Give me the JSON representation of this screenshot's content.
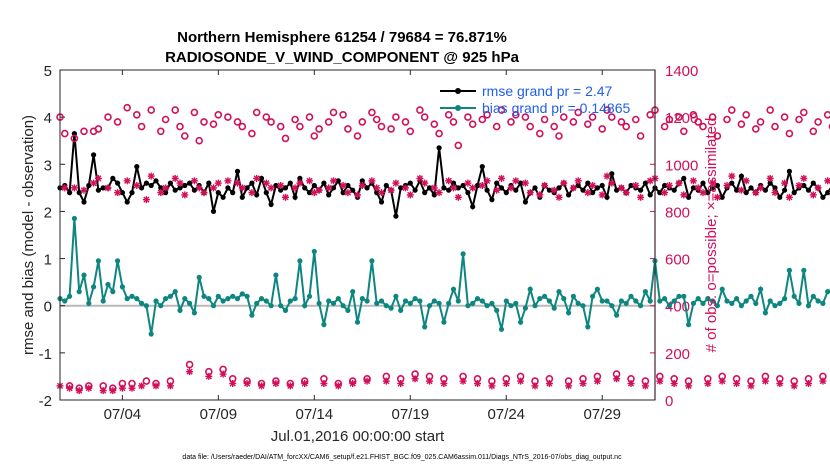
{
  "chart_data": {
    "type": "line",
    "title": [
      "Northern Hemisphere 61254 / 79684 = 76.871%",
      "RADIOSONDE_V_WIND_COMPONENT @ 925 hPa"
    ],
    "xlabel": "Jul.01,2016 00:00:00 start",
    "ylabel_left": "rmse and bias (model - observation)",
    "ylabel_right": "# of obs: o=possible; ×=assimilated",
    "ylim_left": [
      -2,
      5
    ],
    "ylim_right": [
      0,
      1400
    ],
    "xlim": [
      0.75,
      31.75
    ],
    "left_ticks": [
      "-2",
      "-1",
      "0",
      "1",
      "2",
      "3",
      "4",
      "5"
    ],
    "right_ticks": [
      "0",
      "200",
      "400",
      "600",
      "800",
      "1000",
      "1200",
      "1400"
    ],
    "x_ticks": [
      {
        "x": 4,
        "label": "07/04"
      },
      {
        "x": 9,
        "label": "07/09"
      },
      {
        "x": 14,
        "label": "07/14"
      },
      {
        "x": 19,
        "label": "07/19"
      },
      {
        "x": 24,
        "label": "07/24"
      },
      {
        "x": 29,
        "label": "07/29"
      }
    ],
    "x_start": 0.75,
    "x_step": 0.25,
    "series": [
      {
        "name": "rmse grand pr = 2.47",
        "axis": "left",
        "color": "#000000",
        "values": [
          2.5,
          2.55,
          2.4,
          3.65,
          2.4,
          2.2,
          2.55,
          3.2,
          2.45,
          2.5,
          2.5,
          2.7,
          2.6,
          2.4,
          2.2,
          2.4,
          2.95,
          2.5,
          2.6,
          2.55,
          2.65,
          2.5,
          2.4,
          2.6,
          2.45,
          2.5,
          2.55,
          2.6,
          2.45,
          2.55,
          2.4,
          2.6,
          2.0,
          2.4,
          2.3,
          2.5,
          2.4,
          2.85,
          2.3,
          2.5,
          2.6,
          2.35,
          2.7,
          2.4,
          2.15,
          2.55,
          2.45,
          2.5,
          2.6,
          2.3,
          2.7,
          2.5,
          2.4,
          2.55,
          2.45,
          2.6,
          2.35,
          2.5,
          2.65,
          2.4,
          2.55,
          2.45,
          2.3,
          2.65,
          2.5,
          2.6,
          2.4,
          2.2,
          2.55,
          2.45,
          1.9,
          2.5,
          2.55,
          2.6,
          2.45,
          2.65,
          2.4,
          2.5,
          2.35,
          3.35,
          2.5,
          2.45,
          2.6,
          2.5,
          2.55,
          2.4,
          2.1,
          2.55,
          2.95,
          2.45,
          2.25,
          2.6,
          2.5,
          2.4,
          2.55,
          2.45,
          2.6,
          2.2,
          2.4,
          2.5,
          2.3,
          2.55,
          2.45,
          2.4,
          2.5,
          2.6,
          2.35,
          2.5,
          2.55,
          2.45,
          2.6,
          2.4,
          2.5,
          2.55,
          2.3,
          2.8,
          2.45,
          2.5,
          2.4,
          2.55,
          2.5,
          2.45,
          2.6,
          2.35,
          2.5,
          2.4,
          2.55,
          2.5,
          2.45,
          2.6,
          2.7,
          2.3,
          2.5,
          2.45,
          2.6,
          2.4,
          2.5,
          2.55,
          2.3,
          2.5,
          2.6,
          2.45,
          2.75,
          2.4,
          2.5,
          2.4,
          2.55,
          2.45,
          2.6,
          2.5,
          2.3,
          2.45,
          2.85,
          2.4,
          2.5,
          2.55,
          2.45,
          2.6,
          2.5,
          2.3,
          2.4,
          2.55,
          2.35,
          2.5,
          2.65,
          2.5,
          2.3,
          2.45,
          2.6,
          2.5,
          2.45,
          2.55,
          2.4,
          2.5,
          2.3,
          2.55,
          2.45,
          2.4,
          2.5,
          2.6,
          2.45,
          2.55,
          2.5,
          2.45,
          2.3,
          2.55,
          2.5,
          2.6,
          2.5,
          2.4,
          2.95,
          2.45,
          2.5,
          2.55,
          2.3,
          2.6,
          2.5,
          2.4,
          2.55,
          2.45,
          2.5,
          2.4,
          2.6,
          2.45,
          2.5,
          2.55,
          2.4,
          2.35,
          2.5,
          2.55,
          2.45,
          2.6,
          2.3,
          2.5,
          2.4,
          2.45,
          2.6,
          2.55,
          2.45,
          2.0,
          2.5,
          2.3,
          2.55,
          2.45,
          2.6,
          2.4,
          2.5,
          2.35,
          2.55,
          2.45,
          2.4,
          2.5,
          2.3,
          2.7,
          2.5,
          2.4,
          2.55,
          2.45,
          2.35,
          2.5,
          2.45,
          2.5
        ]
      },
      {
        "name": "bias grand pr = 0.14865",
        "axis": "left",
        "color": "#0e8680",
        "values": [
          0.15,
          0.1,
          0.2,
          1.85,
          0.3,
          0.65,
          0.05,
          0.4,
          0.95,
          0.1,
          0.45,
          0.3,
          0.95,
          0.4,
          0.15,
          0.2,
          0.15,
          0.05,
          0.0,
          -0.6,
          0.1,
          0.0,
          0.15,
          0.2,
          0.3,
          -0.1,
          0.15,
          0.05,
          -0.15,
          0.6,
          0.2,
          0.15,
          0.0,
          0.2,
          0.1,
          0.15,
          0.2,
          0.15,
          0.25,
          0.2,
          -0.2,
          0.05,
          0.15,
          0.1,
          0.0,
          0.65,
          0.0,
          -0.1,
          0.1,
          0.15,
          0.95,
          0.0,
          0.2,
          1.15,
          0.05,
          -0.4,
          0.1,
          0.05,
          0.15,
          0.0,
          -0.1,
          0.3,
          -0.35,
          0.15,
          0.1,
          0.95,
          0.05,
          0.1,
          0.0,
          -0.05,
          0.2,
          -0.1,
          0.1,
          0.05,
          0.15,
          0.1,
          -0.45,
          0.0,
          0.1,
          0.05,
          -0.35,
          0.05,
          0.35,
          0.1,
          1.1,
          0.0,
          0.05,
          0.15,
          0.1,
          0.0,
          0.05,
          -0.1,
          -0.5,
          0.1,
          0.0,
          0.05,
          -0.35,
          -0.05,
          0.35,
          0.0,
          0.15,
          0.2,
          0.1,
          -0.05,
          0.3,
          0.15,
          -0.15,
          0.2,
          0.05,
          0.0,
          -0.45,
          0.2,
          0.35,
          0.1,
          0.1,
          0.0,
          -0.2,
          0.1,
          0.05,
          0.2,
          0.1,
          0.0,
          0.3,
          0.1,
          0.95,
          0.1,
          0.15,
          0.0,
          0.1,
          0.2,
          0.2,
          -0.4,
          0.05,
          0.15,
          0.05,
          0.15,
          0.1,
          0.0,
          0.35,
          0.1,
          0.05,
          0.15,
          0.0,
          0.1,
          0.2,
          0.05,
          0.35,
          -0.15,
          0.1,
          0.0,
          0.05,
          0.15,
          0.75,
          0.2,
          0.05,
          0.75,
          0.0,
          0.2,
          0.1,
          0.05,
          0.3,
          0.35,
          0.0,
          0.05,
          0.35,
          0.85,
          0.5,
          0.1,
          0.4,
          0.2,
          -0.1,
          0.0,
          0.15,
          -0.6,
          0.1,
          0.15,
          0.05,
          0.2,
          0.1,
          0.0,
          0.2,
          0.1,
          0.15,
          -0.15,
          0.2,
          0.05,
          0.15,
          0.1,
          0.35,
          -0.2,
          0.1,
          0.05,
          0.3,
          0.15,
          0.2,
          0.1,
          0.05,
          0.25,
          -0.6,
          0.2,
          0.1,
          0.05,
          -0.25,
          0.1,
          0.0,
          0.2,
          0.05,
          0.15,
          -0.95,
          0.05,
          0.0,
          0.2,
          0.05,
          -0.35,
          0.15,
          0.1,
          0.05,
          0.2,
          0.0,
          0.1,
          0.3,
          0.95,
          0.2,
          0.5,
          0.35,
          0.65,
          0.15,
          0.55,
          0.3,
          0.2,
          0.1,
          0.55,
          0.2,
          0.05,
          0.85,
          0.0,
          1.45
        ]
      },
      {
        "name": "possible",
        "axis": "right",
        "color": "#d2105a",
        "marker": "o",
        "values": [
          1200,
          1130,
          60,
          1110,
          50,
          1140,
          60,
          1140,
          1150,
          60,
          1200,
          50,
          1180,
          70,
          1240,
          70,
          1210,
          1160,
          80,
          1230,
          70,
          1140,
          1190,
          80,
          1230,
          1160,
          1120,
          150,
          1220,
          1100,
          1180,
          120,
          1170,
          1210,
          130,
          1200,
          90,
          1180,
          1160,
          80,
          1130,
          1220,
          70,
          1200,
          1180,
          80,
          1160,
          1110,
          70,
          1190,
          1160,
          80,
          1200,
          1120,
          1150,
          90,
          1180,
          1220,
          70,
          1210,
          1150,
          80,
          1120,
          1180,
          90,
          1220,
          1190,
          1160,
          100,
          1150,
          1200,
          90,
          1180,
          1140,
          110,
          1230,
          1200,
          100,
          1170,
          1130,
          90,
          1210,
          1180,
          1080,
          100,
          1200,
          1170,
          90,
          1190,
          1210,
          80,
          1160,
          1230,
          90,
          1180,
          1210,
          100,
          1200,
          1160,
          80,
          1130,
          1190,
          90,
          1160,
          1120,
          1200,
          80,
          1180,
          1220,
          90,
          1170,
          1200,
          100,
          1150,
          1230,
          1200,
          110,
          1180,
          1160,
          90,
          1190,
          1120,
          80,
          1210,
          1230,
          100,
          1160,
          1190,
          90,
          1200,
          1140,
          80,
          1210,
          1180,
          1160,
          90,
          1200,
          1120,
          100,
          1190,
          1230,
          90,
          1170,
          1210,
          80,
          1150,
          1180,
          100,
          1230,
          1160,
          90,
          1200,
          1130,
          80,
          1190,
          1220,
          90,
          1140,
          1180,
          100,
          1210,
          1160,
          90,
          1200,
          1180,
          110,
          1230,
          1140,
          100,
          1190,
          1160,
          90,
          1200,
          1120,
          80,
          1170,
          1220,
          90,
          1150,
          1200,
          100,
          1160,
          1210,
          90,
          1130,
          1180,
          80,
          1190,
          1150,
          1220,
          100,
          1170,
          1200,
          90,
          1160,
          1130,
          80,
          1190,
          1210,
          90,
          1180,
          1140,
          100,
          1200,
          1160,
          90,
          1120,
          1150,
          1180,
          80,
          1170,
          1200,
          90,
          1140,
          1210,
          70,
          1160,
          1190,
          80,
          1130,
          1220,
          70,
          1180,
          1150,
          80,
          1130,
          1190,
          70,
          1160,
          1200,
          70,
          1120,
          1180,
          80,
          1150,
          60,
          1130,
          0
        ]
      },
      {
        "name": "assimilated",
        "axis": "right",
        "color": "#d2105a",
        "marker": "x",
        "values": [
          60,
          900,
          50,
          900,
          40,
          890,
          50,
          920,
          940,
          40,
          900,
          40,
          880,
          50,
          930,
          50,
          910,
          60,
          850,
          950,
          60,
          880,
          900,
          60,
          940,
          920,
          870,
          120,
          930,
          900,
          880,
          100,
          900,
          920,
          110,
          930,
          70,
          920,
          900,
          70,
          880,
          940,
          60,
          920,
          900,
          70,
          910,
          860,
          60,
          900,
          920,
          70,
          930,
          880,
          890,
          70,
          900,
          930,
          60,
          910,
          880,
          70,
          870,
          910,
          80,
          930,
          900,
          880,
          80,
          890,
          920,
          70,
          900,
          870,
          90,
          940,
          920,
          80,
          900,
          880,
          70,
          930,
          900,
          860,
          80,
          920,
          900,
          70,
          910,
          930,
          60,
          890,
          940,
          70,
          900,
          930,
          80,
          920,
          880,
          60,
          870,
          910,
          70,
          890,
          860,
          920,
          60,
          900,
          930,
          70,
          880,
          910,
          80,
          870,
          950,
          920,
          90,
          900,
          880,
          70,
          910,
          860,
          60,
          930,
          940,
          80,
          880,
          910,
          70,
          920,
          870,
          60,
          930,
          900,
          880,
          70,
          920,
          860,
          80,
          910,
          950,
          70,
          890,
          930,
          60,
          880,
          900,
          80,
          940,
          880,
          70,
          920,
          860,
          60,
          910,
          940,
          70,
          870,
          900,
          80,
          930,
          880,
          70,
          920,
          900,
          90,
          950,
          870,
          80,
          910,
          880,
          70,
          920,
          850,
          60,
          890,
          940,
          70,
          870,
          920,
          80,
          880,
          930,
          70,
          860,
          900,
          60,
          910,
          870,
          940,
          80,
          890,
          920,
          70,
          880,
          860,
          60,
          910,
          930,
          70,
          900,
          870,
          80,
          920,
          880,
          70,
          850,
          880,
          900,
          60,
          890,
          920,
          70,
          870,
          930,
          50,
          880,
          910,
          60,
          860,
          940,
          50,
          900,
          880,
          60,
          860,
          910,
          50,
          880,
          920,
          50,
          850,
          900,
          60,
          870,
          40,
          860,
          0
        ]
      }
    ],
    "legend": {
      "location": "top-right",
      "entries": [
        "rmse grand pr = 2.47",
        "bias grand pr = 0.14865"
      ],
      "text_color": "#1f5ef0"
    },
    "footnote": "data file: /Users/raeder/DAI/ATM_forcXX/CAM6_setup/f.e21.FHIST_BGC.f09_025.CAM6assim.011/Diags_NTrS_2016-07/obs_diag_output.nc",
    "colors": {
      "rmse": "#000000",
      "bias": "#0e8680",
      "obs": "#d2105a",
      "zero_line": "#b9b9b9",
      "right_axis": "#d2105a",
      "legend_text": "#1f5ef0"
    }
  }
}
